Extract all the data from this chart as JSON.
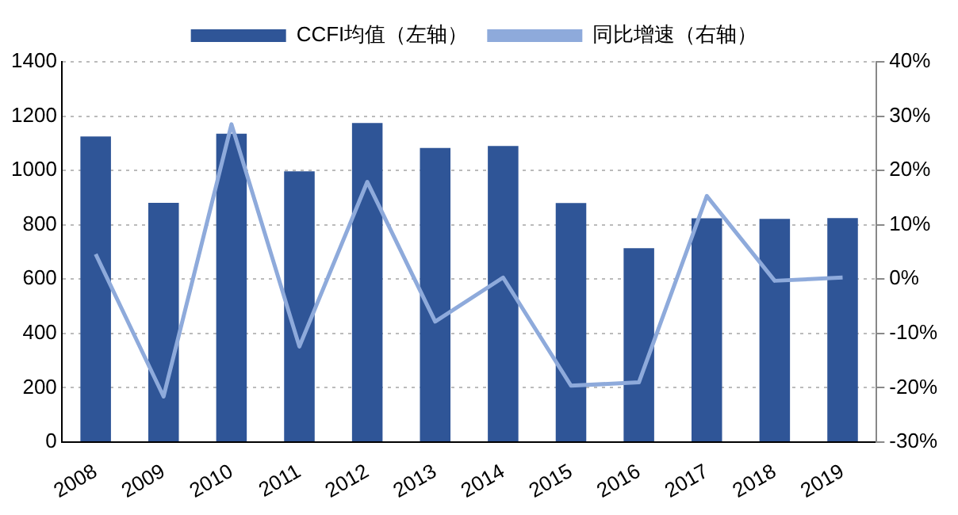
{
  "chart_data": {
    "type": "bar",
    "categories": [
      "2008",
      "2009",
      "2010",
      "2011",
      "2012",
      "2013",
      "2014",
      "2015",
      "2016",
      "2017",
      "2018",
      "2019"
    ],
    "series": [
      {
        "name": "CCFI均值（左轴）",
        "color": "#2f5597",
        "values": [
          1125,
          881,
          1135,
          997,
          1175,
          1083,
          1090,
          880,
          714,
          824,
          822,
          825
        ]
      },
      {
        "name": "同比增速（右轴）",
        "type": "line",
        "axis": "y2",
        "color": "#8eaadb",
        "values": [
          4.6,
          -21.6,
          28.5,
          -12.4,
          17.9,
          -7.8,
          0.3,
          -19.6,
          -19,
          15.3,
          -0.3,
          0.3
        ]
      }
    ],
    "ylim": [
      0,
      1400
    ],
    "yticks": [
      0,
      200,
      400,
      600,
      800,
      1000,
      1200,
      1400
    ],
    "y2lim": [
      -30,
      40
    ],
    "y2ticks": [
      {
        "value": -30,
        "label": "-30%"
      },
      {
        "value": -20,
        "label": "-20%"
      },
      {
        "value": -10,
        "label": "-10%"
      },
      {
        "value": 0,
        "label": "0%"
      },
      {
        "value": 10,
        "label": "10%"
      },
      {
        "value": 20,
        "label": "20%"
      },
      {
        "value": 30,
        "label": "30%"
      },
      {
        "value": 40,
        "label": "40%"
      }
    ],
    "grid": "y",
    "legend": "top",
    "marker": "none",
    "line_style": "solid"
  }
}
